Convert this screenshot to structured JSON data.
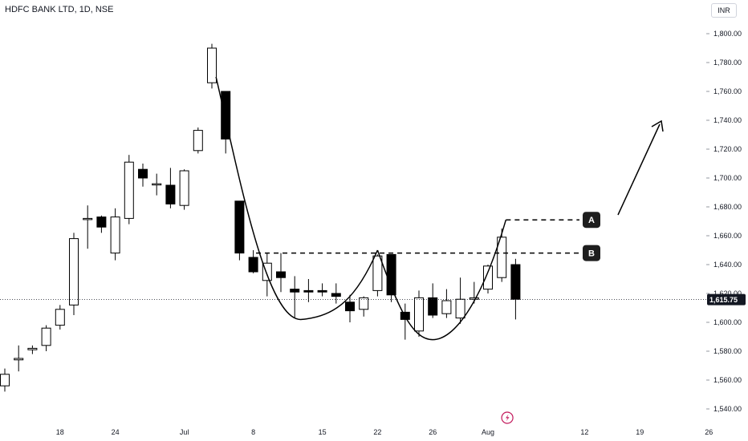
{
  "header": {
    "title": "HDFC BANK LTD, 1D, NSE",
    "currency": "INR"
  },
  "chart_data": {
    "type": "candlestick",
    "ylim": [
      1530,
      1815
    ],
    "yticks": [
      1540,
      1560,
      1580,
      1600,
      1620,
      1640,
      1660,
      1680,
      1700,
      1720,
      1740,
      1760,
      1780,
      1800
    ],
    "ytick_labels": [
      "1,540.00",
      "1,560.00",
      "1,580.00",
      "1,600.00",
      "1,620.00",
      "1,640.00",
      "1,660.00",
      "1,680.00",
      "1,700.00",
      "1,720.00",
      "1,740.00",
      "1,760.00",
      "1,780.00",
      "1,800.00"
    ],
    "xlim": [
      0,
      51
    ],
    "xticks": [
      {
        "i": 4,
        "label": "18"
      },
      {
        "i": 8,
        "label": "24"
      },
      {
        "i": 13,
        "label": "Jul"
      },
      {
        "i": 18,
        "label": "8"
      },
      {
        "i": 23,
        "label": "15"
      },
      {
        "i": 27,
        "label": "22"
      },
      {
        "i": 31,
        "label": "26"
      },
      {
        "i": 35,
        "label": "Aug"
      },
      {
        "i": 42,
        "label": "12"
      },
      {
        "i": 46,
        "label": "19"
      },
      {
        "i": 51,
        "label": "26"
      }
    ],
    "last_price": 1615.75,
    "last_price_label": "1,615.75",
    "candles": [
      {
        "o": 1556,
        "h": 1568,
        "l": 1552,
        "c": 1564
      },
      {
        "o": 1574,
        "h": 1584,
        "l": 1566,
        "c": 1575
      },
      {
        "o": 1581,
        "h": 1584,
        "l": 1578,
        "c": 1582
      },
      {
        "o": 1584,
        "h": 1598,
        "l": 1580,
        "c": 1596
      },
      {
        "o": 1598,
        "h": 1612,
        "l": 1595,
        "c": 1609
      },
      {
        "o": 1612,
        "h": 1662,
        "l": 1605,
        "c": 1658
      },
      {
        "o": 1672,
        "h": 1681,
        "l": 1651,
        "c": 1672
      },
      {
        "o": 1673,
        "h": 1674,
        "l": 1662,
        "c": 1666
      },
      {
        "o": 1648,
        "h": 1679,
        "l": 1643,
        "c": 1673
      },
      {
        "o": 1672,
        "h": 1716,
        "l": 1668,
        "c": 1711
      },
      {
        "o": 1706,
        "h": 1710,
        "l": 1694,
        "c": 1700
      },
      {
        "o": 1696,
        "h": 1703,
        "l": 1688,
        "c": 1696
      },
      {
        "o": 1695,
        "h": 1707,
        "l": 1679,
        "c": 1682
      },
      {
        "o": 1681,
        "h": 1706,
        "l": 1678,
        "c": 1705
      },
      {
        "o": 1719,
        "h": 1735,
        "l": 1717,
        "c": 1733
      },
      {
        "o": 1766,
        "h": 1793,
        "l": 1762,
        "c": 1790
      },
      {
        "o": 1760,
        "h": 1760,
        "l": 1717,
        "c": 1727
      },
      {
        "o": 1684,
        "h": 1684,
        "l": 1643,
        "c": 1648
      },
      {
        "o": 1645,
        "h": 1650,
        "l": 1634,
        "c": 1635
      },
      {
        "o": 1629,
        "h": 1648,
        "l": 1618,
        "c": 1641
      },
      {
        "o": 1635,
        "h": 1648,
        "l": 1621,
        "c": 1631
      },
      {
        "o": 1623,
        "h": 1632,
        "l": 1603,
        "c": 1621
      },
      {
        "o": 1622,
        "h": 1630,
        "l": 1614,
        "c": 1621
      },
      {
        "o": 1622,
        "h": 1627,
        "l": 1618,
        "c": 1621
      },
      {
        "o": 1620,
        "h": 1627,
        "l": 1613,
        "c": 1618
      },
      {
        "o": 1614,
        "h": 1619,
        "l": 1600,
        "c": 1608
      },
      {
        "o": 1609,
        "h": 1618,
        "l": 1604,
        "c": 1617
      },
      {
        "o": 1622,
        "h": 1647,
        "l": 1618,
        "c": 1646
      },
      {
        "o": 1647,
        "h": 1647,
        "l": 1614,
        "c": 1619
      },
      {
        "o": 1607,
        "h": 1613,
        "l": 1588,
        "c": 1602
      },
      {
        "o": 1594,
        "h": 1622,
        "l": 1590,
        "c": 1617
      },
      {
        "o": 1617,
        "h": 1627,
        "l": 1603,
        "c": 1605
      },
      {
        "o": 1606,
        "h": 1623,
        "l": 1603,
        "c": 1615
      },
      {
        "o": 1603,
        "h": 1631,
        "l": 1599,
        "c": 1616
      },
      {
        "o": 1616,
        "h": 1628,
        "l": 1613,
        "c": 1617
      },
      {
        "o": 1623,
        "h": 1640,
        "l": 1620,
        "c": 1639
      },
      {
        "o": 1631,
        "h": 1665,
        "l": 1628,
        "c": 1659
      },
      {
        "o": 1640,
        "h": 1644,
        "l": 1602,
        "c": 1616
      }
    ],
    "annotations": [
      {
        "label": "A",
        "level": 1671
      },
      {
        "label": "B",
        "level": 1648
      }
    ]
  },
  "colors": {
    "up_fill": "#ffffff",
    "down_fill": "#000000",
    "stroke": "#000000",
    "label_bg": "#1e1e1e",
    "price_tag_bg": "#131722",
    "grid": "#e8e8e8",
    "accent": "#c2185b"
  },
  "icons": {
    "bolt": "lightning-icon"
  }
}
